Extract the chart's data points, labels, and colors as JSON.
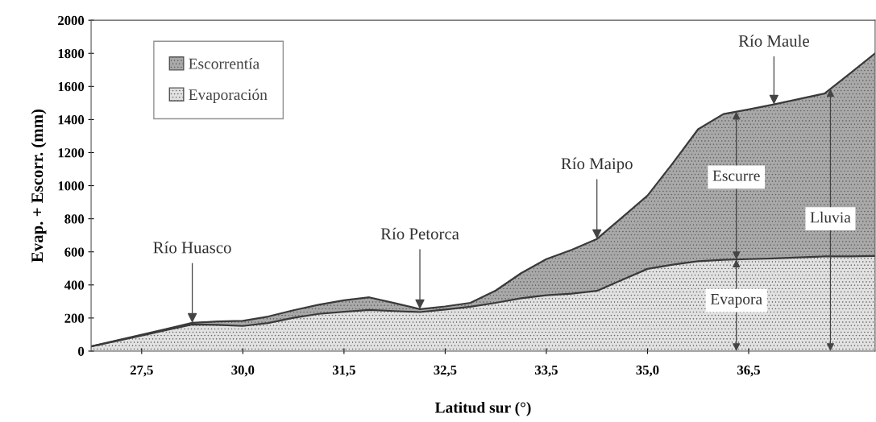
{
  "chart_data": {
    "type": "area",
    "stacked": true,
    "xlabel": "Latitud sur (°)",
    "ylabel": "Evap. + Escorr. (mm)",
    "categories": [
      null,
      null,
      "27,5",
      null,
      null,
      null,
      "30,0",
      null,
      null,
      null,
      "31,5",
      null,
      null,
      null,
      "32,5",
      null,
      null,
      null,
      "33,5",
      null,
      null,
      null,
      "35,0",
      null,
      null,
      null,
      "36,5",
      null,
      null,
      null,
      null,
      null
    ],
    "series": [
      {
        "name": "Evaporación",
        "color": "#e2e2e2",
        "values": [
          28,
          61,
          94,
          128,
          161,
          159,
          152,
          170,
          201,
          225,
          238,
          249,
          242,
          236,
          251,
          268,
          292,
          319,
          338,
          347,
          364,
          431,
          497,
          523,
          543,
          552,
          556,
          560,
          566,
          572,
          573,
          575
        ]
      },
      {
        "name": "Escorrentía",
        "color": "#a9a9a9",
        "values": [
          0,
          3,
          5,
          7,
          10,
          20,
          31,
          39,
          46,
          55,
          69,
          76,
          48,
          18,
          19,
          24,
          74,
          152,
          218,
          265,
          314,
          378,
          443,
          613,
          798,
          881,
          905,
          931,
          958,
          985,
          1104,
          1225
        ]
      }
    ],
    "ylim": [
      0,
      2000
    ],
    "yticks": [
      0,
      200,
      400,
      600,
      800,
      1000,
      1200,
      1400,
      1600,
      1800,
      2000
    ],
    "legend": "upper left",
    "grid": false,
    "annotations": [
      {
        "text": "Río Huasco",
        "y": 171
      },
      {
        "text": "Río Petorca",
        "y": 254
      },
      {
        "text": "Río Maipo",
        "y": 678
      },
      {
        "text": "Río Maule",
        "y": 1491
      },
      "Escurre",
      "Evapora",
      "Lluvia"
    ]
  }
}
